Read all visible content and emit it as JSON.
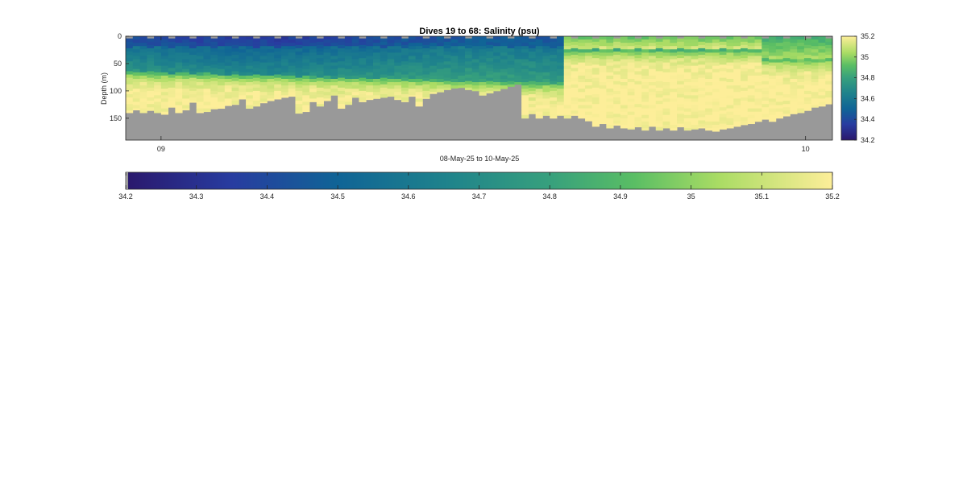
{
  "figure": {
    "title": "Dives 19 to 68: Salinity (psu)",
    "xlabel": "08-May-25 to 10-May-25",
    "ylabel": "Depth (m)"
  },
  "chart_data": {
    "type": "heatmap",
    "title": "Dives 19 to 68: Salinity (psu)",
    "xlabel": "08-May-25 to 10-May-25",
    "ylabel": "Depth (m)",
    "x_ticks": [
      "09",
      "10"
    ],
    "y_ticks": [
      0,
      50,
      100,
      150
    ],
    "ylim": [
      0,
      190
    ],
    "y_reversed": true,
    "colorbar_ticks": [
      34.2,
      34.4,
      34.6,
      34.8,
      35,
      35.2
    ],
    "horizontal_colorbar_ticks": [
      34.2,
      34.3,
      34.4,
      34.5,
      34.6,
      34.7,
      34.8,
      34.9,
      35,
      35.1,
      35.2
    ],
    "clim": [
      34.2,
      35.2
    ],
    "colormap": "haline (dark blue to green to pale yellow)",
    "nodata_color": "#999999",
    "dives": 100,
    "bottom_depth_m": [
      140,
      135,
      140,
      136,
      140,
      143,
      130,
      140,
      135,
      121,
      140,
      138,
      133,
      132,
      127,
      125,
      115,
      132,
      128,
      122,
      118,
      115,
      112,
      110,
      141,
      138,
      120,
      128,
      118,
      108,
      132,
      125,
      112,
      120,
      116,
      114,
      112,
      110,
      116,
      120,
      110,
      128,
      114,
      105,
      102,
      98,
      95,
      94,
      98,
      100,
      108,
      104,
      100,
      96,
      92,
      88,
      150,
      142,
      150,
      145,
      150,
      145,
      150,
      145,
      150,
      155,
      165,
      160,
      168,
      163,
      168,
      170,
      166,
      172,
      165,
      172,
      168,
      172,
      166,
      172,
      170,
      168,
      172,
      174,
      170,
      168,
      165,
      162,
      160,
      156,
      152,
      156,
      150,
      146,
      142,
      140,
      136,
      130,
      128,
      124
    ],
    "salinity_layers_psu": [
      {
        "depth_range_m": [
          0,
          40
        ],
        "first_half": 34.5,
        "second_half": 34.95,
        "last_dives": 34.85
      },
      {
        "depth_range_m": [
          40,
          80
        ],
        "first_half": 34.8,
        "second_half": 35.15,
        "last_dives": 35.0
      },
      {
        "depth_range_m": [
          80,
          190
        ],
        "first_half": 35.2,
        "second_half": 35.2,
        "last_dives": 35.2
      }
    ]
  }
}
